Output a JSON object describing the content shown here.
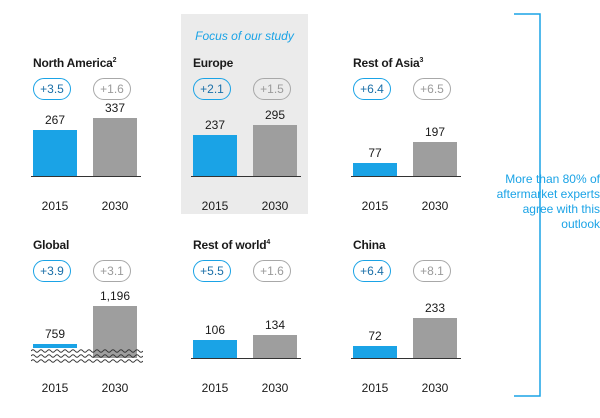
{
  "focus_label": "Focus of our study",
  "side_note": "More than 80% of aftermarket experts agree with this outlook",
  "colors": {
    "bar_2015": "#1aa3e6",
    "bar_2030": "#9e9e9e",
    "focus_bg": "#ebebeb",
    "accent": "#1aa3e6"
  },
  "chart_data": [
    {
      "type": "bar",
      "title": "North America",
      "footnote": "2",
      "categories": [
        "2015",
        "2030"
      ],
      "values": [
        267,
        337
      ],
      "growth": [
        "+3.5",
        "+1.6"
      ]
    },
    {
      "type": "bar",
      "title": "Europe",
      "footnote": "",
      "categories": [
        "2015",
        "2030"
      ],
      "values": [
        237,
        295
      ],
      "growth": [
        "+2.1",
        "+1.5"
      ]
    },
    {
      "type": "bar",
      "title": "Rest of Asia",
      "footnote": "3",
      "categories": [
        "2015",
        "2030"
      ],
      "values": [
        77,
        197
      ],
      "growth": [
        "+6.4",
        "+6.5"
      ]
    },
    {
      "type": "bar",
      "title": "Global",
      "footnote": "",
      "categories": [
        "2015",
        "2030"
      ],
      "values": [
        759,
        1196
      ],
      "value_labels": [
        "759",
        "1,196"
      ],
      "growth": [
        "+3.9",
        "+3.1"
      ],
      "axis_break": true
    },
    {
      "type": "bar",
      "title": "Rest of world",
      "footnote": "4",
      "categories": [
        "2015",
        "2030"
      ],
      "values": [
        106,
        134
      ],
      "growth": [
        "+5.5",
        "+1.6"
      ]
    },
    {
      "type": "bar",
      "title": "China",
      "footnote": "",
      "categories": [
        "2015",
        "2030"
      ],
      "values": [
        72,
        233
      ],
      "growth": [
        "+6.4",
        "+8.1"
      ]
    }
  ]
}
